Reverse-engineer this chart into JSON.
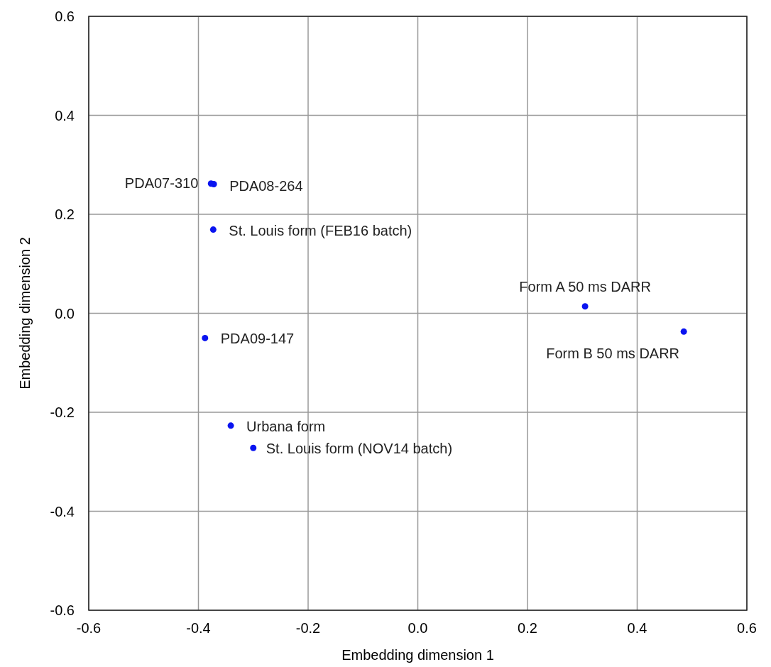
{
  "chart_data": {
    "type": "scatter",
    "xlabel": "Embedding dimension 1",
    "ylabel": "Embedding dimension 2",
    "x": [
      -0.377,
      -0.372,
      -0.373,
      0.305,
      0.485,
      -0.388,
      -0.341,
      -0.3
    ],
    "values": [
      0.262,
      0.261,
      0.169,
      0.014,
      -0.037,
      -0.05,
      -0.227,
      -0.272
    ],
    "color": "#0a14f0",
    "marker": "circle",
    "grid": true,
    "xlim": [
      -0.6,
      0.6
    ],
    "ylim": [
      -0.6,
      0.6
    ],
    "xticks": [
      -0.6,
      -0.4,
      -0.2,
      {
        "value": 0,
        "label": "0.0"
      },
      0.2,
      0.4,
      0.6
    ],
    "yticks": [
      -0.6,
      -0.4,
      -0.2,
      {
        "value": 0,
        "label": "0.0"
      },
      0.2,
      0.4,
      0.6
    ],
    "annotations": [
      {
        "text": "PDA07-310",
        "x": -0.377,
        "y": 0.262
      },
      {
        "text": "PDA08-264",
        "x": -0.372,
        "y": 0.261
      },
      {
        "text": "St. Louis form (FEB16 batch)",
        "x": -0.373,
        "y": 0.169
      },
      {
        "text": "Form A 50 ms DARR",
        "x": 0.305,
        "y": 0.014
      },
      {
        "text": "Form B 50 ms DARR",
        "x": 0.485,
        "y": -0.037
      },
      {
        "text": "PDA09-147",
        "x": -0.388,
        "y": -0.05
      },
      {
        "text": "Urbana form",
        "x": -0.341,
        "y": -0.227
      },
      {
        "text": "St. Louis form (NOV14 batch)",
        "x": -0.3,
        "y": -0.272
      }
    ]
  }
}
